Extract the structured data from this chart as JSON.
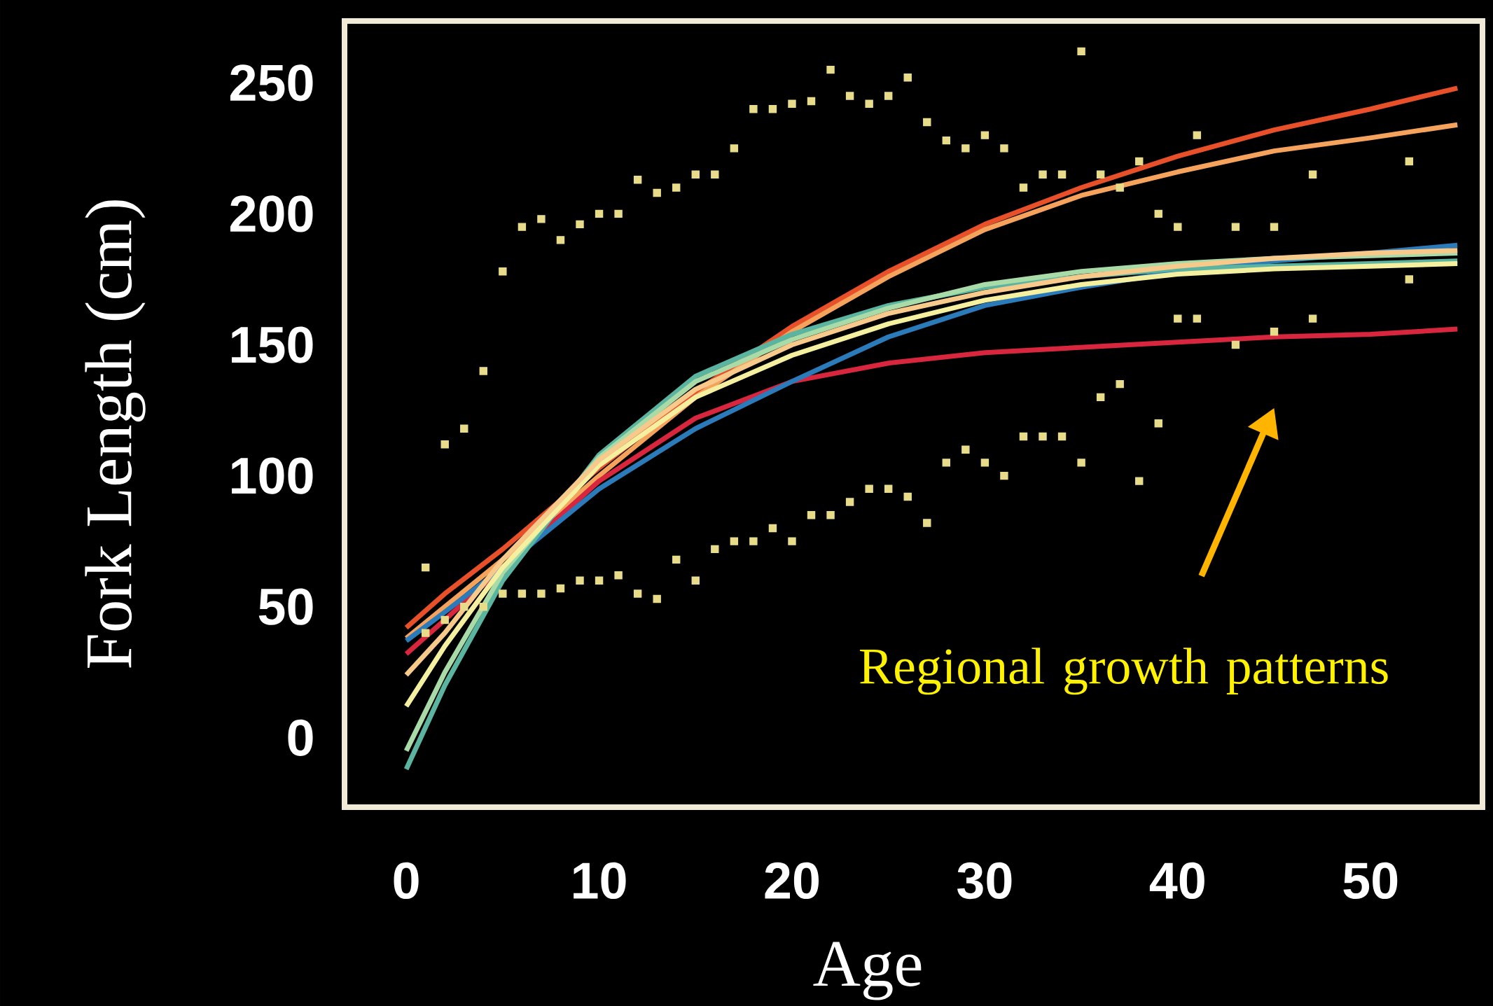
{
  "chart_data": {
    "type": "line",
    "xlabel": "Age",
    "ylabel": "Fork Length (cm)",
    "xlim": [
      -3.2,
      55.8
    ],
    "ylim": [
      -26.5,
      273.6
    ],
    "xticks": [
      0,
      10,
      20,
      30,
      40,
      50
    ],
    "yticks": [
      0,
      50,
      100,
      150,
      200,
      250
    ],
    "annotations": [
      "Regional growth patterns"
    ],
    "series": [
      {
        "type": "scatter",
        "marker": "square",
        "color": "#e8dc8a",
        "x": [
          1,
          1,
          2,
          2,
          3,
          3,
          4,
          4,
          5,
          5,
          6,
          6,
          7,
          7,
          8,
          8,
          9,
          9,
          10,
          10,
          11,
          11,
          12,
          12,
          13,
          13,
          14,
          14,
          15,
          15,
          16,
          16,
          17,
          17,
          18,
          18,
          19,
          19,
          20,
          20,
          21,
          21,
          22,
          22,
          23,
          23,
          24,
          24,
          25,
          25,
          26,
          26,
          27,
          27,
          28,
          28,
          29,
          29,
          30,
          30,
          31,
          31,
          32,
          32,
          33,
          33,
          34,
          34,
          35,
          35,
          36,
          36,
          37,
          37,
          38,
          38,
          39,
          39,
          40,
          40,
          41,
          41,
          43,
          43,
          45,
          45,
          47,
          47,
          52,
          52
        ],
        "values": [
          65,
          40,
          112,
          45,
          118,
          50,
          140,
          50,
          178,
          55,
          195,
          55,
          198,
          55,
          190,
          57,
          196,
          60,
          200,
          60,
          200,
          62,
          213,
          55,
          208,
          53,
          210,
          68,
          215,
          60,
          215,
          72,
          225,
          75,
          240,
          75,
          240,
          80,
          242,
          75,
          243,
          85,
          255,
          85,
          245,
          90,
          242,
          95,
          245,
          95,
          252,
          92,
          235,
          82,
          228,
          105,
          225,
          110,
          230,
          105,
          225,
          100,
          210,
          115,
          215,
          115,
          215,
          115,
          262,
          105,
          215,
          130,
          210,
          135,
          220,
          98,
          200,
          120,
          195,
          160,
          230,
          160,
          195,
          150,
          195,
          155,
          215,
          160,
          220,
          175
        ]
      },
      {
        "color": "#e8502a",
        "x": [
          0,
          2,
          5,
          10,
          15,
          20,
          25,
          30,
          35,
          40,
          45,
          50,
          54.5
        ],
        "values": [
          42,
          55,
          72,
          103,
          132,
          157,
          178,
          196,
          210,
          222,
          232,
          240,
          248
        ]
      },
      {
        "color": "#f5a35c",
        "x": [
          0,
          2,
          5,
          10,
          15,
          20,
          25,
          30,
          35,
          40,
          45,
          50,
          54.5
        ],
        "values": [
          38,
          50,
          68,
          100,
          130,
          155,
          176,
          194,
          207,
          216,
          224,
          229,
          234
        ]
      },
      {
        "color": "#d7263d",
        "x": [
          0,
          2,
          5,
          10,
          15,
          20,
          25,
          30,
          35,
          40,
          45,
          50,
          54.5
        ],
        "values": [
          32,
          45,
          65,
          98,
          122,
          136,
          143,
          147,
          149,
          151,
          153,
          154,
          156
        ]
      },
      {
        "color": "#2b7bba",
        "x": [
          0,
          2,
          5,
          10,
          15,
          20,
          25,
          30,
          35,
          40,
          45,
          50,
          54.5
        ],
        "values": [
          37,
          48,
          65,
          95,
          118,
          136,
          153,
          165,
          172,
          178,
          182,
          185,
          188
        ]
      },
      {
        "color": "#5ab4a0",
        "x": [
          0,
          2,
          5,
          10,
          15,
          20,
          25,
          30,
          35,
          40,
          45,
          50,
          54.5
        ],
        "values": [
          -12,
          20,
          60,
          108,
          138,
          154,
          165,
          172,
          176,
          179,
          180,
          181,
          182
        ]
      },
      {
        "color": "#a8dba8",
        "x": [
          0,
          2,
          5,
          10,
          15,
          20,
          25,
          30,
          35,
          40,
          45,
          50,
          54.5
        ],
        "values": [
          -5,
          25,
          63,
          107,
          136,
          152,
          164,
          173,
          178,
          181,
          183,
          184,
          185
        ]
      },
      {
        "color": "#f5f0a0",
        "x": [
          0,
          2,
          5,
          10,
          15,
          20,
          25,
          30,
          35,
          40,
          45,
          50,
          54.5
        ],
        "values": [
          12,
          35,
          65,
          104,
          130,
          146,
          158,
          167,
          173,
          177,
          179,
          180,
          181
        ]
      },
      {
        "color": "#f7c98a",
        "x": [
          0,
          2,
          5,
          10,
          15,
          20,
          25,
          30,
          35,
          40,
          45,
          50,
          54.5
        ],
        "values": [
          24,
          40,
          68,
          106,
          133,
          150,
          162,
          170,
          176,
          180,
          183,
          185,
          186
        ]
      }
    ]
  }
}
